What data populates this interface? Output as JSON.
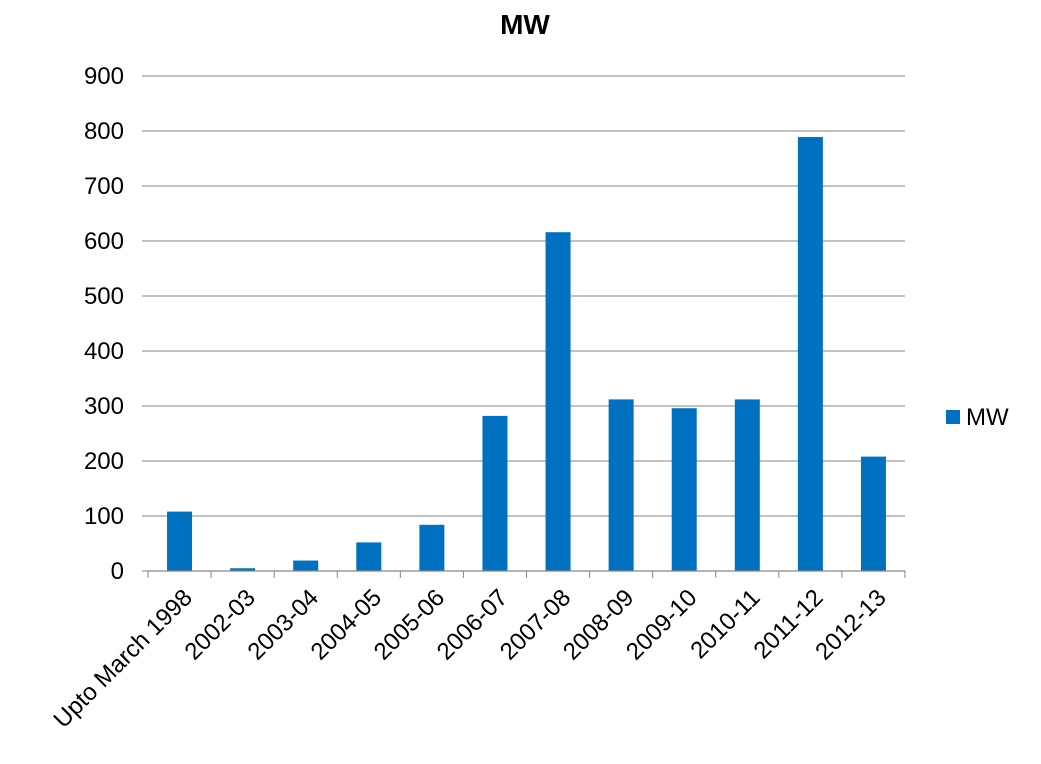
{
  "chart_data": {
    "type": "bar",
    "title": "MW",
    "xlabel": "",
    "ylabel": "",
    "categories": [
      "Upto March 1998",
      "2002-03",
      "2003-04",
      "2004-05",
      "2005-06",
      "2006-07",
      "2007-08",
      "2008-09",
      "2009-10",
      "2010-11",
      "2011-12",
      "2012-13"
    ],
    "series": [
      {
        "name": "MW",
        "color": "#0070C0",
        "values": [
          108,
          5,
          19,
          52,
          84,
          282,
          616,
          312,
          296,
          312,
          789,
          208
        ]
      }
    ],
    "ylim": [
      0,
      900
    ],
    "yticks": [
      0,
      100,
      200,
      300,
      400,
      500,
      600,
      700,
      800,
      900
    ],
    "grid": true,
    "gridline_color": "#868686",
    "axis_color": "#868686",
    "legend": "right"
  }
}
